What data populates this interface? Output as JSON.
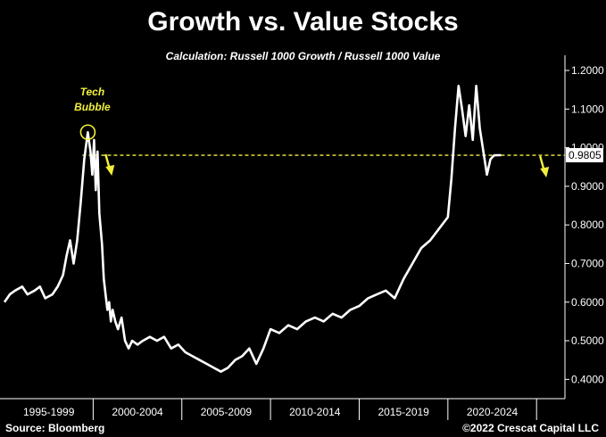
{
  "chart_data": {
    "type": "line",
    "title": "Growth vs. Value Stocks",
    "subtitle": "Calculation: Russell 1000 Growth / Russell 1000 Value",
    "xlabel": "",
    "ylabel": "",
    "ylim": [
      0.35,
      1.23
    ],
    "xlim": [
      1995.0,
      2026.6
    ],
    "y_ticks": [
      "1.2000",
      "1.1000",
      "1.0000",
      "0.9000",
      "0.8000",
      "0.7000",
      "0.6000",
      "0.5000",
      "0.4000"
    ],
    "y_tick_values": [
      1.2,
      1.1,
      1.0,
      0.9,
      0.8,
      0.7,
      0.6,
      0.5,
      0.4
    ],
    "x_ticks": [
      "1995-1999",
      "2000-2004",
      "2005-2009",
      "2010-2014",
      "2015-2019",
      "2020-2024"
    ],
    "x_tick_ranges": [
      [
        1995,
        2000
      ],
      [
        2000,
        2005
      ],
      [
        2005,
        2010
      ],
      [
        2010,
        2015
      ],
      [
        2015,
        2020
      ],
      [
        2020,
        2025
      ]
    ],
    "last_value_label": "0.9805",
    "last_value": 0.9805,
    "reference_line": 0.9805,
    "annotation": [
      "Tech",
      "Bubble"
    ],
    "grid": false,
    "series": [
      {
        "color": "#ffffff",
        "x": [
          1995.0,
          1995.3,
          1995.6,
          1996.0,
          1996.3,
          1996.7,
          1997.0,
          1997.3,
          1997.7,
          1998.0,
          1998.3,
          1998.5,
          1998.7,
          1998.9,
          1999.1,
          1999.3,
          1999.5,
          1999.7,
          1999.85,
          1999.95,
          2000.05,
          2000.15,
          2000.25,
          2000.35,
          2000.5,
          2000.6,
          2000.7,
          2000.8,
          2000.9,
          2001.0,
          2001.1,
          2001.25,
          2001.4,
          2001.6,
          2001.8,
          2002.0,
          2002.2,
          2002.5,
          2002.8,
          2003.2,
          2003.6,
          2004.0,
          2004.4,
          2004.8,
          2005.2,
          2005.6,
          2006.0,
          2006.4,
          2006.8,
          2007.2,
          2007.6,
          2008.0,
          2008.4,
          2008.8,
          2009.2,
          2009.6,
          2010.0,
          2010.5,
          2011.0,
          2011.5,
          2012.0,
          2012.5,
          2013.0,
          2013.5,
          2014.0,
          2014.5,
          2015.0,
          2015.5,
          2016.0,
          2016.5,
          2017.0,
          2017.5,
          2018.0,
          2018.5,
          2019.0,
          2019.5,
          2020.0,
          2020.2,
          2020.4,
          2020.6,
          2020.8,
          2021.0,
          2021.2,
          2021.4,
          2021.6,
          2021.8,
          2022.0,
          2022.2,
          2022.4,
          2022.6,
          2022.8,
          2023.0
        ],
        "values": [
          0.6,
          0.62,
          0.63,
          0.64,
          0.62,
          0.63,
          0.64,
          0.61,
          0.62,
          0.64,
          0.67,
          0.72,
          0.76,
          0.7,
          0.76,
          0.86,
          0.97,
          1.04,
          0.99,
          0.93,
          1.02,
          0.89,
          0.99,
          0.83,
          0.75,
          0.66,
          0.62,
          0.58,
          0.6,
          0.55,
          0.58,
          0.55,
          0.53,
          0.56,
          0.5,
          0.48,
          0.5,
          0.49,
          0.5,
          0.51,
          0.5,
          0.51,
          0.48,
          0.49,
          0.47,
          0.46,
          0.45,
          0.44,
          0.43,
          0.42,
          0.43,
          0.45,
          0.46,
          0.48,
          0.44,
          0.48,
          0.53,
          0.52,
          0.54,
          0.53,
          0.55,
          0.56,
          0.55,
          0.57,
          0.56,
          0.58,
          0.59,
          0.61,
          0.62,
          0.63,
          0.61,
          0.66,
          0.7,
          0.74,
          0.76,
          0.79,
          0.82,
          0.92,
          1.05,
          1.16,
          1.1,
          1.03,
          1.11,
          1.02,
          1.16,
          1.05,
          0.99,
          0.93,
          0.97,
          0.98,
          0.9805,
          0.9805
        ]
      }
    ]
  },
  "footer": {
    "source": "Source: Bloomberg",
    "copyright": "©2022 Crescat Capital LLC"
  }
}
